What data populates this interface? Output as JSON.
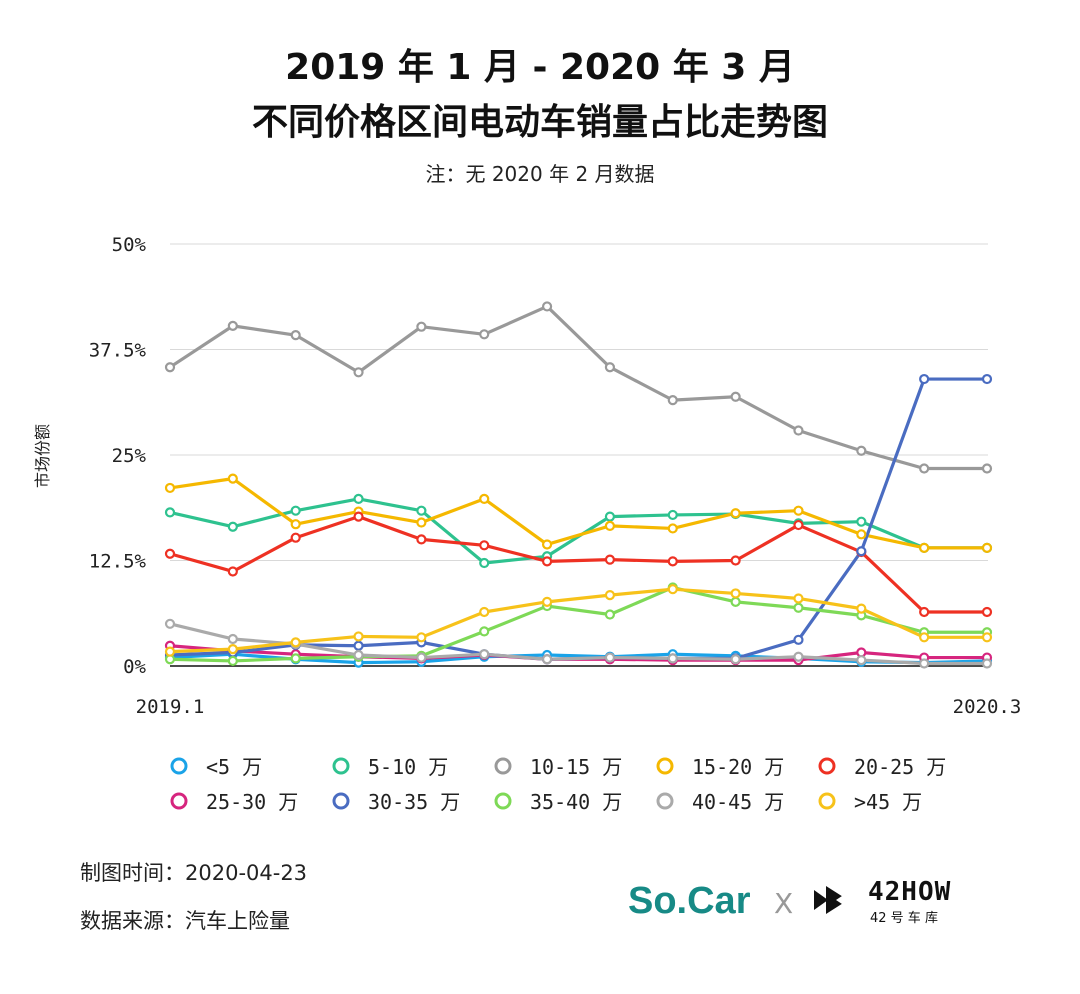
{
  "title_line1": "2019 年 1 月 - 2020 年 3 月",
  "title_line2": "不同价格区间电动车销量占比走势图",
  "subtitle": "注：无 2020 年 2 月数据",
  "footer": {
    "date_label": "制图时间：2020-04-23",
    "source_label": "数据来源：汽车上险量"
  },
  "logos": {
    "socar": "So.Car",
    "separator": "X",
    "brand": "42HOW",
    "brand_sub": "42 号 车 库"
  },
  "chart_data": {
    "type": "line",
    "title": "",
    "xlabel": "",
    "ylabel": "市场份额",
    "x": [
      "2019.1",
      "2019.2",
      "2019.3",
      "2019.4",
      "2019.5",
      "2019.6",
      "2019.7",
      "2019.8",
      "2019.9",
      "2019.10",
      "2019.11",
      "2019.12",
      "2020.1",
      "2020.3"
    ],
    "x_tick_labels": [
      "2019.1",
      "2020.3"
    ],
    "ylim": [
      0,
      50
    ],
    "y_ticks": [
      0,
      12.5,
      25,
      37.5,
      50
    ],
    "y_tick_labels": [
      "0%",
      "12.5%",
      "25%",
      "37.5%",
      "50%"
    ],
    "grid": true,
    "legend_position": "bottom",
    "series": [
      {
        "name": "<5 万",
        "color": "#1aa3e8",
        "values": [
          1.0,
          1.4,
          0.8,
          0.4,
          0.5,
          1.1,
          1.3,
          1.1,
          1.4,
          1.2,
          0.9,
          0.5,
          0.4,
          0.6
        ]
      },
      {
        "name": "5-10 万",
        "color": "#2ec28f",
        "values": [
          18.2,
          16.5,
          18.4,
          19.8,
          18.4,
          12.2,
          13.0,
          17.7,
          17.9,
          18.0,
          16.9,
          17.1,
          14.0,
          14.0
        ]
      },
      {
        "name": "10-15 万",
        "color": "#999999",
        "values": [
          35.4,
          40.3,
          39.2,
          34.8,
          40.2,
          39.3,
          42.6,
          35.4,
          31.5,
          31.9,
          27.9,
          25.5,
          23.4,
          23.4
        ]
      },
      {
        "name": "15-20 万",
        "color": "#f5b800",
        "values": [
          21.1,
          22.2,
          16.8,
          18.3,
          17.0,
          19.8,
          14.4,
          16.6,
          16.3,
          18.1,
          18.4,
          15.6,
          14.0,
          14.0
        ]
      },
      {
        "name": "20-25 万",
        "color": "#ee3123",
        "values": [
          13.3,
          11.2,
          15.2,
          17.7,
          15.0,
          14.3,
          12.4,
          12.6,
          12.4,
          12.5,
          16.7,
          13.5,
          6.4,
          6.4
        ]
      },
      {
        "name": "25-30 万",
        "color": "#d6257e",
        "values": [
          2.4,
          1.8,
          1.4,
          1.1,
          0.9,
          1.3,
          0.8,
          0.8,
          0.7,
          0.7,
          0.7,
          1.6,
          1.0,
          1.0
        ]
      },
      {
        "name": "30-35 万",
        "color": "#4a6cc1",
        "values": [
          1.3,
          1.6,
          2.5,
          2.4,
          2.8,
          1.4,
          0.8,
          1.0,
          0.9,
          0.9,
          3.1,
          13.6,
          34.0,
          34.0
        ]
      },
      {
        "name": "35-40 万",
        "color": "#7ed957",
        "values": [
          0.8,
          0.6,
          0.9,
          1.1,
          1.2,
          4.1,
          7.1,
          6.1,
          9.3,
          7.6,
          6.9,
          6.0,
          4.0,
          4.0
        ]
      },
      {
        "name": "40-45 万",
        "color": "#aaaaaa",
        "values": [
          5.0,
          3.2,
          2.6,
          1.3,
          1.0,
          1.4,
          0.8,
          1.0,
          0.9,
          0.8,
          1.1,
          0.7,
          0.3,
          0.3
        ]
      },
      {
        "name": ">45 万",
        "color": "#f7c21a",
        "values": [
          1.7,
          2.0,
          2.8,
          3.5,
          3.4,
          6.4,
          7.6,
          8.4,
          9.1,
          8.6,
          8.0,
          6.8,
          3.4,
          3.4
        ]
      }
    ]
  }
}
